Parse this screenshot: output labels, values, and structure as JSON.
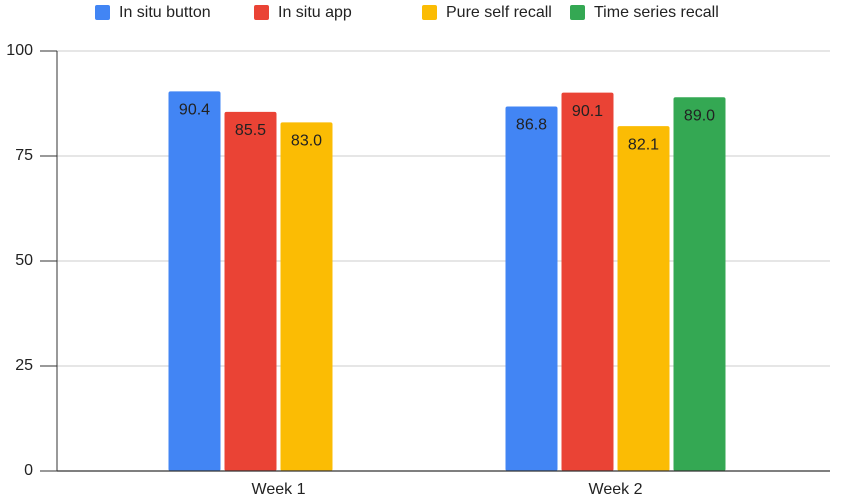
{
  "chart_data": {
    "type": "bar",
    "categories": [
      "Week 1",
      "Week 2"
    ],
    "series": [
      {
        "name": "In situ button",
        "color": "#4285f4",
        "values": [
          90.4,
          86.8
        ],
        "value_labels": [
          "90.4",
          "86.8"
        ]
      },
      {
        "name": "In situ app",
        "color": "#ea4335",
        "values": [
          85.5,
          90.1
        ],
        "value_labels": [
          "85.5",
          "90.1"
        ]
      },
      {
        "name": "Pure self recall",
        "color": "#fbbc04",
        "values": [
          83.0,
          82.1
        ],
        "value_labels": [
          "83.0",
          "82.1"
        ]
      },
      {
        "name": "Time series recall",
        "color": "#34a853",
        "values": [
          null,
          89.0
        ],
        "value_labels": [
          null,
          "89.0"
        ]
      }
    ],
    "ylim": [
      0,
      100
    ],
    "yticks": [
      0,
      25,
      50,
      75,
      100
    ],
    "grid": true,
    "legend": "top"
  }
}
